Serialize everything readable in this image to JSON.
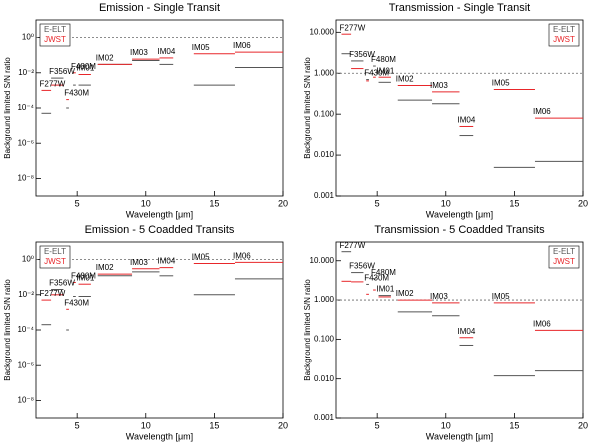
{
  "chart_data": [
    {
      "type": "segment",
      "title": "Emission - Single Transit",
      "xlabel": "Wavelength [μm]",
      "ylabel": "Background limited S/N ratio",
      "xlim": [
        2,
        20
      ],
      "xticks": [
        5,
        10,
        15,
        20
      ],
      "log_y": true,
      "ylim": [
        1e-09,
        10
      ],
      "yticks": [
        {
          "value": 1e-08,
          "label": "10⁻⁸"
        },
        {
          "value": 1e-06,
          "label": "10⁻⁶"
        },
        {
          "value": 0.0001,
          "label": "10⁻⁴"
        },
        {
          "value": 0.01,
          "label": "10⁻²"
        },
        {
          "value": 1,
          "label": "10⁰"
        }
      ],
      "reference_line": 1,
      "legend": "upper left",
      "filters": [
        "F277W",
        "F356W",
        "F430M",
        "F480M",
        "IM01",
        "IM02",
        "IM03",
        "IM04",
        "IM05",
        "IM06"
      ],
      "x_start": [
        2.4,
        3.1,
        4.2,
        4.7,
        5.1,
        6.5,
        9.0,
        11.0,
        13.5,
        16.5
      ],
      "x_end": [
        3.1,
        4.0,
        4.4,
        4.9,
        6.0,
        9.0,
        11.0,
        12.0,
        16.5,
        20.0
      ],
      "series": [
        {
          "name": "E-ELT",
          "color": "#555555",
          "values": [
            5e-05,
            0.005,
            0.0001,
            0.002,
            0.002,
            0.03,
            0.05,
            0.03,
            0.002,
            0.02
          ]
        },
        {
          "name": "JWST",
          "color": "#e8262a",
          "values": [
            0.001,
            0.002,
            0.0003,
            0.01,
            0.008,
            0.03,
            0.06,
            0.07,
            0.12,
            0.15
          ]
        }
      ]
    },
    {
      "type": "segment",
      "title": "Transmission - Single Transit",
      "xlabel": "Wavelength [μm]",
      "ylabel": "Background limited S/N ratio",
      "xlim": [
        2,
        20
      ],
      "xticks": [
        5,
        10,
        15,
        20
      ],
      "log_y": true,
      "ylim": [
        0.001,
        20
      ],
      "yticks": [
        {
          "value": 0.001,
          "label": "0.001"
        },
        {
          "value": 0.01,
          "label": "0.010"
        },
        {
          "value": 0.1,
          "label": "0.100"
        },
        {
          "value": 1,
          "label": "1.000"
        },
        {
          "value": 10,
          "label": "10.000"
        }
      ],
      "reference_line": 1,
      "legend": "upper right",
      "filters": [
        "F277W",
        "F356W",
        "F430M",
        "F480M",
        "IM01",
        "IM02",
        "IM03",
        "IM04",
        "IM05",
        "IM06"
      ],
      "x_start": [
        2.4,
        3.1,
        4.2,
        4.7,
        5.1,
        6.5,
        9.0,
        11.0,
        13.5,
        16.5
      ],
      "x_end": [
        3.1,
        4.0,
        4.4,
        4.9,
        6.0,
        9.0,
        11.0,
        12.0,
        16.5,
        20.0
      ],
      "series": [
        {
          "name": "E-ELT",
          "color": "#555555",
          "values": [
            3,
            2,
            0.7,
            1.5,
            0.6,
            0.22,
            0.18,
            0.03,
            0.005,
            0.007
          ]
        },
        {
          "name": "JWST",
          "color": "#e8262a",
          "values": [
            9,
            1.3,
            0.65,
            0.8,
            0.8,
            0.5,
            0.35,
            0.05,
            0.4,
            0.08
          ]
        }
      ]
    },
    {
      "type": "segment",
      "title": "Emission - 5 Coadded Transits",
      "xlabel": "Wavelength [μm]",
      "ylabel": "Background limited S/N ratio",
      "xlim": [
        2,
        20
      ],
      "xticks": [
        5,
        10,
        15,
        20
      ],
      "log_y": true,
      "ylim": [
        1e-09,
        10
      ],
      "yticks": [
        {
          "value": 1e-08,
          "label": "10⁻⁸"
        },
        {
          "value": 1e-06,
          "label": "10⁻⁶"
        },
        {
          "value": 0.0001,
          "label": "10⁻⁴"
        },
        {
          "value": 0.01,
          "label": "10⁻²"
        },
        {
          "value": 1,
          "label": "10⁰"
        }
      ],
      "reference_line": 1,
      "legend": "upper left",
      "filters": [
        "F277W",
        "F356W",
        "F430M",
        "F480M",
        "IM01",
        "IM02",
        "IM03",
        "IM04",
        "IM05",
        "IM06"
      ],
      "x_start": [
        2.4,
        3.1,
        4.2,
        4.7,
        5.1,
        6.5,
        9.0,
        11.0,
        13.5,
        16.5
      ],
      "x_end": [
        3.1,
        4.0,
        4.4,
        4.9,
        6.0,
        9.0,
        11.0,
        12.0,
        16.5,
        20.0
      ],
      "series": [
        {
          "name": "E-ELT",
          "color": "#555555",
          "values": [
            0.0002,
            0.02,
            0.0001,
            0.008,
            0.008,
            0.12,
            0.2,
            0.12,
            0.01,
            0.08
          ]
        },
        {
          "name": "JWST",
          "color": "#e8262a",
          "values": [
            0.005,
            0.01,
            0.0015,
            0.05,
            0.04,
            0.15,
            0.3,
            0.35,
            0.6,
            0.7
          ]
        }
      ]
    },
    {
      "type": "segment",
      "title": "Transmission - 5 Coadded Transits",
      "xlabel": "Wavelength [μm]",
      "ylabel": "Background limited S/N ratio",
      "xlim": [
        2,
        20
      ],
      "xticks": [
        5,
        10,
        15,
        20
      ],
      "log_y": true,
      "ylim": [
        0.001,
        30
      ],
      "yticks": [
        {
          "value": 0.001,
          "label": "0.001"
        },
        {
          "value": 0.01,
          "label": "0.010"
        },
        {
          "value": 0.1,
          "label": "0.100"
        },
        {
          "value": 1,
          "label": "1.000"
        },
        {
          "value": 10,
          "label": "10.000"
        }
      ],
      "reference_line": 1,
      "legend": "upper right",
      "filters": [
        "F277W",
        "F356W",
        "F430M",
        "F480M",
        "IM01",
        "IM02",
        "IM03",
        "IM04",
        "IM05",
        "IM06"
      ],
      "x_start": [
        2.4,
        3.1,
        4.2,
        4.7,
        5.1,
        6.5,
        9.0,
        11.0,
        13.5,
        16.5
      ],
      "x_end": [
        3.1,
        4.0,
        4.4,
        4.9,
        6.0,
        9.0,
        11.0,
        12.0,
        16.5,
        20.0
      ],
      "series": [
        {
          "name": "E-ELT",
          "color": "#555555",
          "values": [
            17,
            5,
            2.5,
            3.5,
            1.3,
            0.5,
            0.4,
            0.07,
            0.012,
            0.016
          ]
        },
        {
          "name": "JWST",
          "color": "#e8262a",
          "values": [
            3,
            2.9,
            1.4,
            1.8,
            1.2,
            1.0,
            0.85,
            0.11,
            0.85,
            0.17
          ]
        }
      ]
    }
  ]
}
